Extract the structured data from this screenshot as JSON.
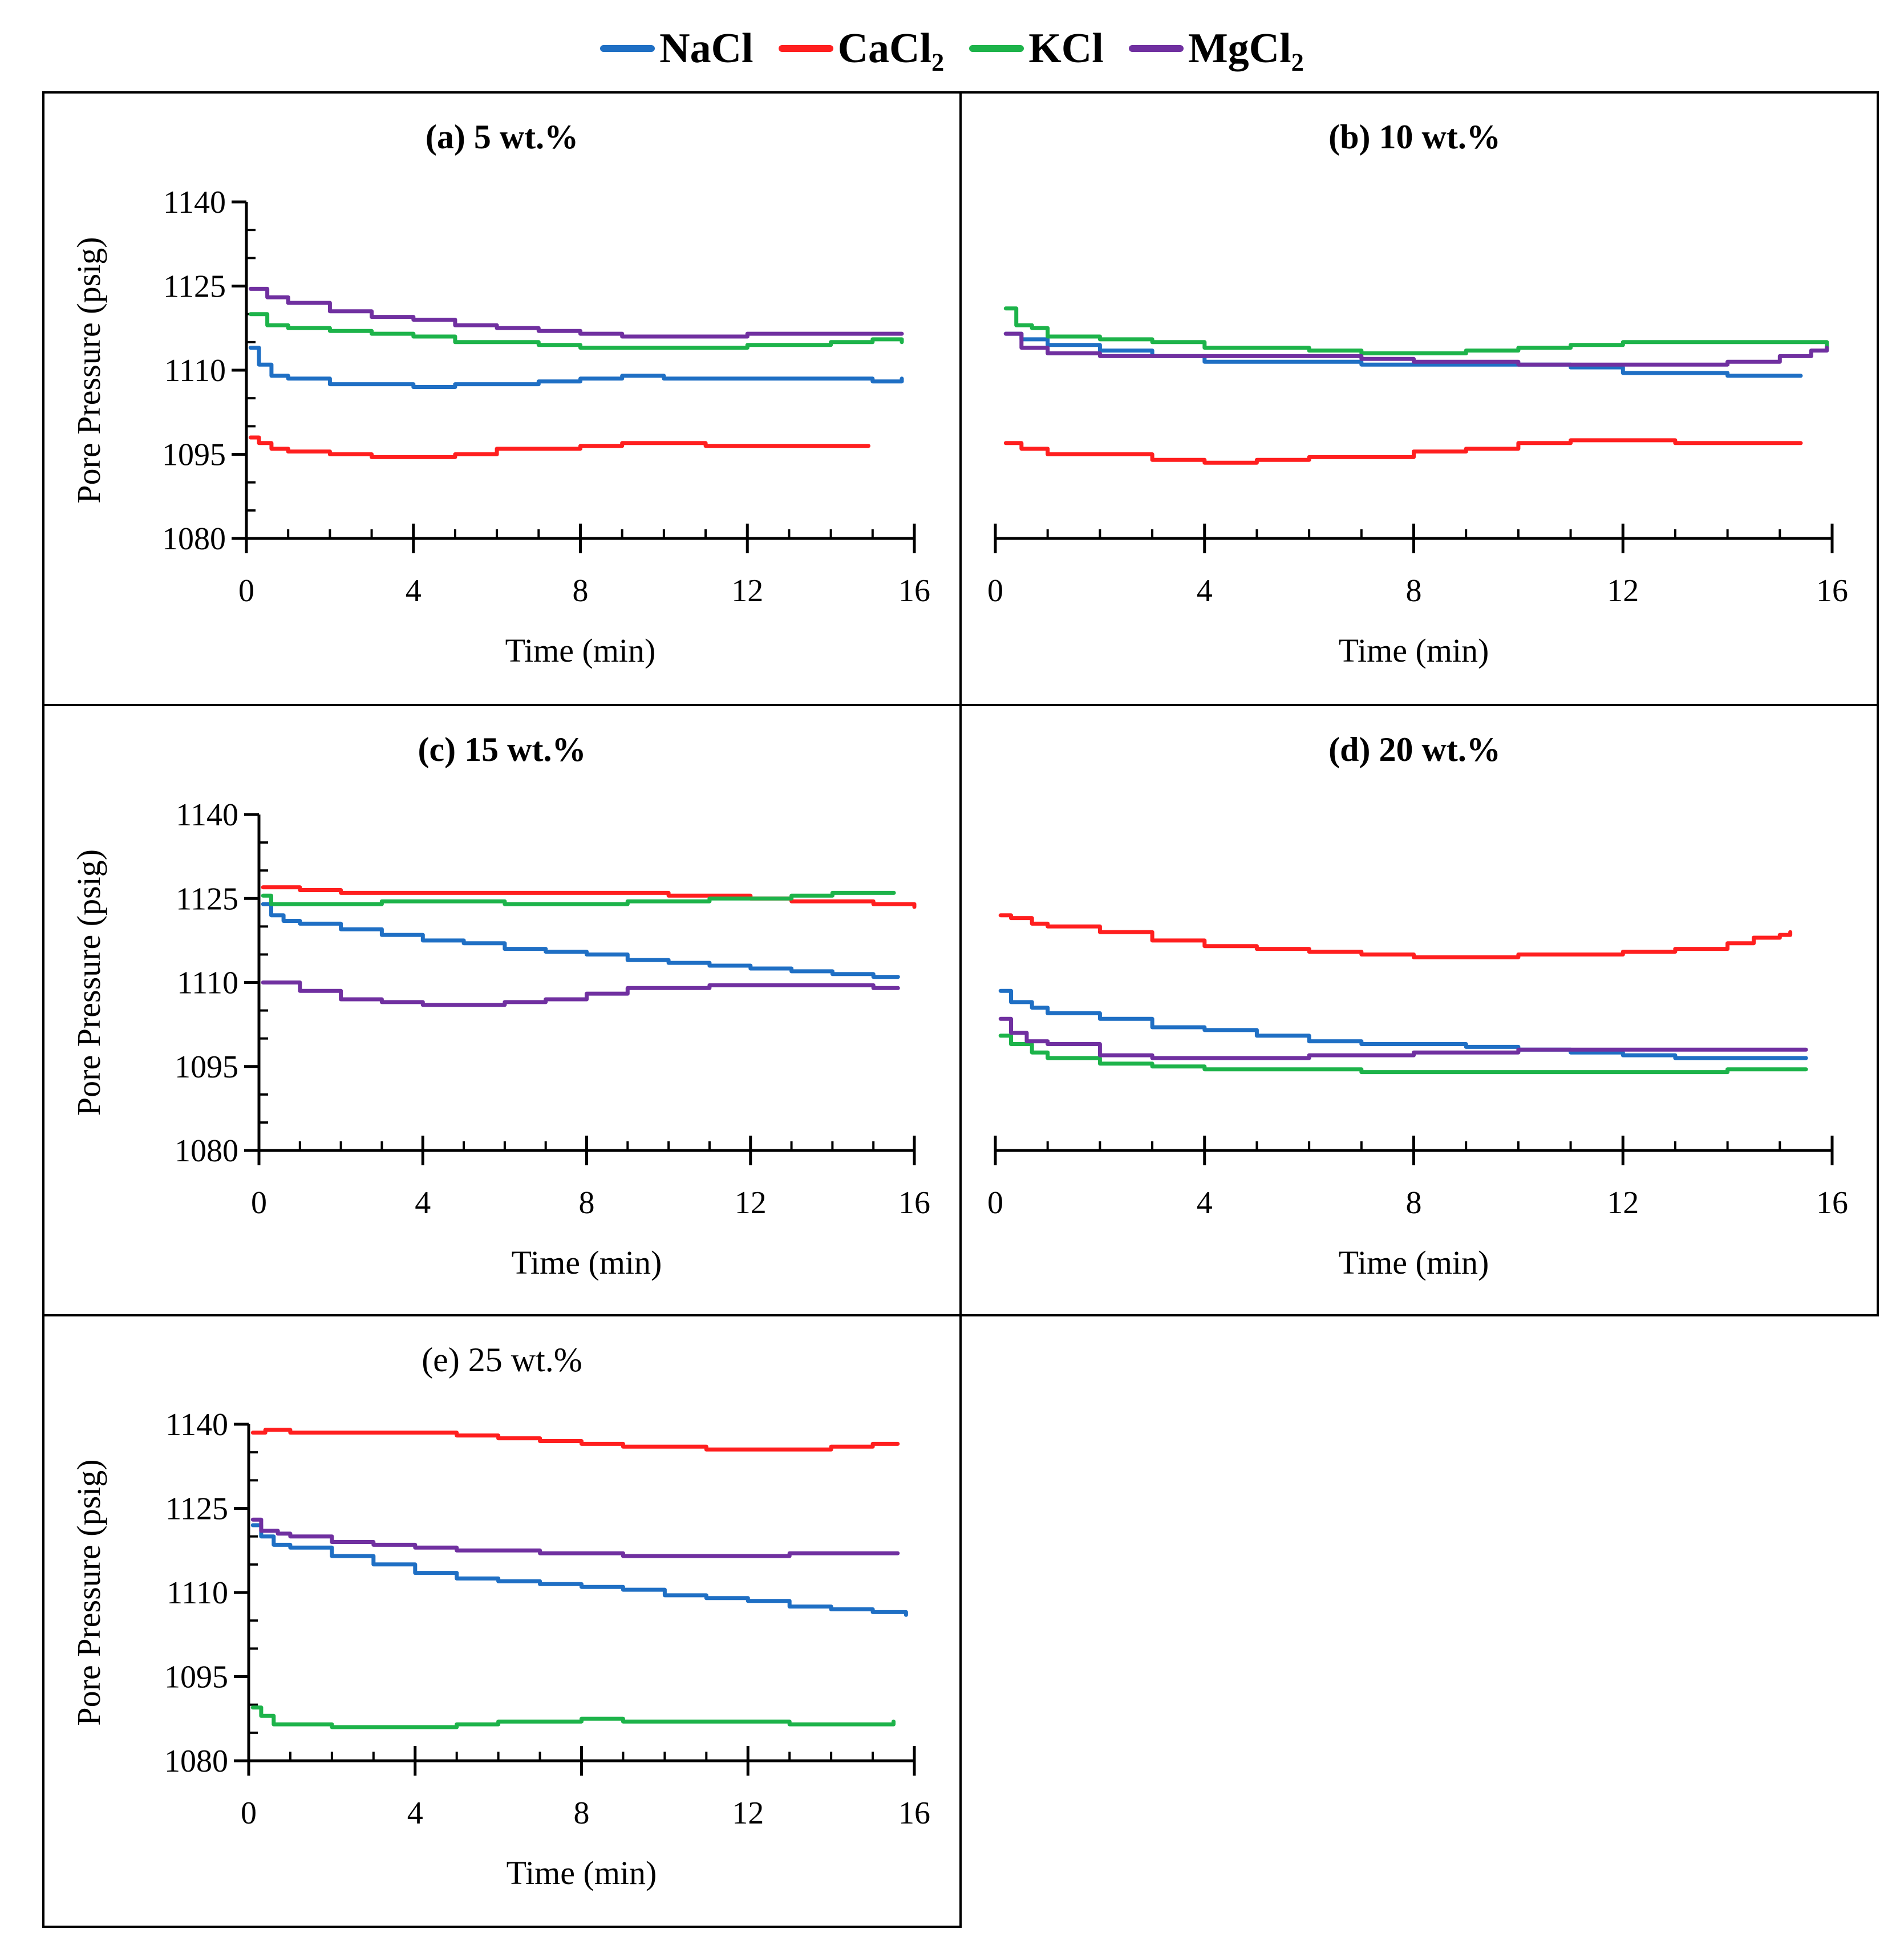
{
  "legend": {
    "items": [
      {
        "label": "NaCl",
        "color": "#1f6fc4"
      },
      {
        "label": "CaCl₂",
        "color": "#ff1f1f"
      },
      {
        "label": "KCl",
        "color": "#1db34a"
      },
      {
        "label": "MgCl₂",
        "color": "#7030a0"
      }
    ]
  },
  "chart_data": [
    {
      "type": "line",
      "title": "(a) 5 wt.%",
      "title_bold": true,
      "xlabel": "Time (min)",
      "ylabel": "Pore Pressure (psig)",
      "xlim": [
        0,
        16
      ],
      "ylim": [
        1080,
        1140
      ],
      "xticks": [
        "0",
        "4",
        "8",
        "12",
        "16"
      ],
      "yticks": [
        "1080",
        "1095",
        "1110",
        "1125",
        "1140"
      ],
      "show_y_labels": true,
      "series": [
        {
          "name": "NaCl",
          "x": [
            0.1,
            0.3,
            0.6,
            1,
            2,
            3,
            4,
            4.5,
            5,
            6,
            7,
            8,
            9,
            10,
            12,
            14,
            15,
            15.7
          ],
          "y": [
            1114,
            1111,
            1109,
            1108.5,
            1107.5,
            1107.5,
            1107,
            1107,
            1107.5,
            1107.5,
            1108,
            1108.5,
            1109,
            1108.5,
            1108.5,
            1108.5,
            1108,
            1108.5
          ]
        },
        {
          "name": "CaCl₂",
          "x": [
            0.1,
            0.3,
            0.6,
            1,
            2,
            3,
            4,
            5,
            6,
            7,
            8,
            9,
            10,
            11,
            12,
            13,
            14,
            14.9
          ],
          "y": [
            1098,
            1097,
            1096,
            1095.5,
            1095,
            1094.5,
            1094.5,
            1095,
            1096,
            1096,
            1096.5,
            1097,
            1097,
            1096.5,
            1096.5,
            1096.5,
            1096.5,
            1096.5
          ]
        },
        {
          "name": "KCl",
          "x": [
            0.1,
            0.5,
            1,
            2,
            3,
            4,
            5,
            6,
            7,
            8,
            9,
            10,
            11,
            12,
            13,
            14,
            15,
            15.7
          ],
          "y": [
            1120,
            1118,
            1117.5,
            1117,
            1116.5,
            1116,
            1115,
            1115,
            1114.5,
            1114,
            1114,
            1114,
            1114,
            1114.5,
            1114.5,
            1115,
            1115.5,
            1115
          ]
        },
        {
          "name": "MgCl₂",
          "x": [
            0.1,
            0.5,
            1,
            2,
            3,
            4,
            5,
            6,
            7,
            8,
            9,
            10,
            11,
            12,
            13,
            14,
            15,
            15.7
          ],
          "y": [
            1124.5,
            1123,
            1122,
            1120.5,
            1119.5,
            1119,
            1118,
            1117.5,
            1117,
            1116.5,
            1116,
            1116,
            1116,
            1116.5,
            1116.5,
            1116.5,
            1116.5,
            1116.5
          ]
        }
      ]
    },
    {
      "type": "line",
      "title": "(b) 10 wt.%",
      "title_bold": true,
      "xlabel": "Time (min)",
      "ylabel": "",
      "xlim": [
        0,
        16
      ],
      "ylim": [
        1080,
        1140
      ],
      "xticks": [
        "0",
        "4",
        "8",
        "12",
        "16"
      ],
      "yticks": [
        "1080",
        "1095",
        "1110",
        "1125",
        "1140"
      ],
      "show_y_labels": false,
      "series": [
        {
          "name": "NaCl",
          "x": [
            0.2,
            0.5,
            1,
            2,
            3,
            4,
            5,
            6,
            7,
            8,
            9,
            10,
            11,
            12,
            13,
            14,
            15,
            15.4
          ],
          "y": [
            1116.5,
            1115.5,
            1114.5,
            1113.5,
            1112.5,
            1111.5,
            1111.5,
            1111.5,
            1111,
            1111,
            1111,
            1111,
            1110.5,
            1109.5,
            1109.5,
            1109,
            1109,
            1109
          ]
        },
        {
          "name": "CaCl₂",
          "x": [
            0.2,
            0.5,
            1,
            2,
            3,
            4,
            5,
            6,
            7,
            8,
            9,
            10,
            11,
            12,
            13,
            14,
            15,
            15.4
          ],
          "y": [
            1097,
            1096,
            1095,
            1095,
            1094,
            1093.5,
            1094,
            1094.5,
            1094.5,
            1095.5,
            1096,
            1097,
            1097.5,
            1097.5,
            1097,
            1097,
            1097,
            1097
          ]
        },
        {
          "name": "KCl",
          "x": [
            0.2,
            0.4,
            0.7,
            1,
            2,
            3,
            4,
            5,
            6,
            7,
            8,
            9,
            10,
            11,
            12,
            13,
            14,
            15,
            15.6,
            15.9
          ],
          "y": [
            1121,
            1118,
            1117.5,
            1116,
            1115.5,
            1115,
            1114,
            1114,
            1113.5,
            1113,
            1113,
            1113.5,
            1114,
            1114.5,
            1115,
            1115,
            1115,
            1115,
            1115,
            1114
          ]
        },
        {
          "name": "MgCl₂",
          "x": [
            0.2,
            0.5,
            1,
            2,
            3,
            4,
            5,
            6,
            7,
            8,
            9,
            10,
            11,
            12,
            13,
            14,
            15,
            15.6,
            15.9
          ],
          "y": [
            1116.5,
            1114,
            1113,
            1112.5,
            1112.5,
            1112.5,
            1112.5,
            1112.5,
            1112,
            1111.5,
            1111.5,
            1111,
            1111,
            1111,
            1111,
            1111.5,
            1112.5,
            1113.5,
            1114
          ]
        }
      ]
    },
    {
      "type": "line",
      "title": "(c) 15 wt.%",
      "title_bold": true,
      "xlabel": "Time (min)",
      "ylabel": "Pore Pressure (psig)",
      "xlim": [
        0,
        16
      ],
      "ylim": [
        1080,
        1140
      ],
      "xticks": [
        "0",
        "4",
        "8",
        "12",
        "16"
      ],
      "yticks": [
        "1080",
        "1095",
        "1110",
        "1125",
        "1140"
      ],
      "show_y_labels": true,
      "series": [
        {
          "name": "NaCl",
          "x": [
            0.1,
            0.3,
            0.6,
            1,
            2,
            3,
            4,
            5,
            6,
            7,
            8,
            9,
            10,
            11,
            12,
            13,
            14,
            15,
            15.6
          ],
          "y": [
            1124,
            1122,
            1121,
            1120.5,
            1119.5,
            1118.5,
            1117.5,
            1117,
            1116,
            1115.5,
            1115,
            1114,
            1113.5,
            1113,
            1112.5,
            1112,
            1111.5,
            1111,
            1111
          ]
        },
        {
          "name": "CaCl₂",
          "x": [
            0.1,
            1,
            2,
            3,
            4,
            5,
            6,
            7,
            8,
            9,
            10,
            11,
            12,
            13,
            14,
            15,
            15.5,
            16
          ],
          "y": [
            1127,
            1126.5,
            1126,
            1126,
            1126,
            1126,
            1126,
            1126,
            1126,
            1126,
            1125.5,
            1125.5,
            1125,
            1124.5,
            1124.5,
            1124,
            1124,
            1123.5
          ]
        },
        {
          "name": "KCl",
          "x": [
            0.1,
            0.3,
            0.7,
            1,
            2,
            3,
            4,
            5,
            6,
            7,
            8,
            9,
            10,
            11,
            12,
            13,
            14,
            15,
            15.5
          ],
          "y": [
            1125.5,
            1124,
            1124,
            1124,
            1124,
            1124.5,
            1124.5,
            1124.5,
            1124,
            1124,
            1124,
            1124.5,
            1124.5,
            1125,
            1125,
            1125.5,
            1126,
            1126,
            1126
          ]
        },
        {
          "name": "MgCl₂",
          "x": [
            0.1,
            0.4,
            1,
            2,
            3,
            4,
            5,
            6,
            7,
            8,
            9,
            10,
            11,
            12,
            13,
            14,
            15,
            15.6
          ],
          "y": [
            1110,
            1110,
            1108.5,
            1107,
            1106.5,
            1106,
            1106,
            1106.5,
            1107,
            1108,
            1109,
            1109,
            1109.5,
            1109.5,
            1109.5,
            1109.5,
            1109,
            1109
          ]
        }
      ]
    },
    {
      "type": "line",
      "title": "(d) 20 wt.%",
      "title_bold": true,
      "xlabel": "Time (min)",
      "ylabel": "",
      "xlim": [
        0,
        16
      ],
      "ylim": [
        1080,
        1140
      ],
      "xticks": [
        "0",
        "4",
        "8",
        "12",
        "16"
      ],
      "yticks": [
        "1080",
        "1095",
        "1110",
        "1125",
        "1140"
      ],
      "show_y_labels": false,
      "series": [
        {
          "name": "NaCl",
          "x": [
            0.1,
            0.3,
            0.7,
            1,
            2,
            3,
            4,
            5,
            6,
            7,
            8,
            9,
            10,
            11,
            12,
            13,
            14,
            15,
            15.5
          ],
          "y": [
            1108.5,
            1106.5,
            1105.5,
            1104.5,
            1103.5,
            1102,
            1101.5,
            1100.5,
            1099.5,
            1099,
            1099,
            1098.5,
            1098,
            1097.5,
            1097,
            1096.5,
            1096.5,
            1096.5,
            1096.5
          ]
        },
        {
          "name": "CaCl₂",
          "x": [
            0.1,
            0.3,
            0.7,
            1,
            2,
            3,
            4,
            5,
            6,
            7,
            8,
            9,
            10,
            11,
            12,
            13,
            14,
            14.5,
            15,
            15.2
          ],
          "y": [
            1122,
            1121.5,
            1120.5,
            1120,
            1119,
            1117.5,
            1116.5,
            1116,
            1115.5,
            1115,
            1114.5,
            1114.5,
            1115,
            1115,
            1115.5,
            1116,
            1117,
            1118,
            1118.5,
            1119
          ]
        },
        {
          "name": "KCl",
          "x": [
            0.1,
            0.3,
            0.7,
            1,
            2,
            3,
            4,
            5,
            6,
            7,
            8,
            9,
            10,
            11,
            12,
            13,
            14,
            15,
            15.5
          ],
          "y": [
            1100.5,
            1099,
            1097.5,
            1096.5,
            1095.5,
            1095,
            1094.5,
            1094.5,
            1094.5,
            1094,
            1094,
            1094,
            1094,
            1094,
            1094,
            1094,
            1094.5,
            1094.5,
            1094.5
          ]
        },
        {
          "name": "MgCl₂",
          "x": [
            0.1,
            0.3,
            0.6,
            1,
            2,
            3,
            4,
            5,
            6,
            7,
            8,
            9,
            10,
            11,
            12,
            13,
            14,
            15,
            15.5
          ],
          "y": [
            1103.5,
            1101,
            1099.5,
            1099,
            1097,
            1096.5,
            1096.5,
            1096.5,
            1097,
            1097,
            1097.5,
            1097.5,
            1098,
            1098,
            1098,
            1098,
            1098,
            1098,
            1098
          ]
        }
      ]
    },
    {
      "type": "line",
      "title": "(e) 25 wt.%",
      "title_bold": false,
      "xlabel": "Time (min)",
      "ylabel": "Pore Pressure (psig)",
      "xlim": [
        0,
        16
      ],
      "ylim": [
        1080,
        1140
      ],
      "xticks": [
        "0",
        "4",
        "8",
        "12",
        "16"
      ],
      "yticks": [
        "1080",
        "1095",
        "1110",
        "1125",
        "1140"
      ],
      "show_y_labels": true,
      "series": [
        {
          "name": "NaCl",
          "x": [
            0.1,
            0.3,
            0.6,
            1,
            2,
            3,
            4,
            5,
            6,
            7,
            8,
            9,
            10,
            11,
            12,
            13,
            14,
            15,
            15.8
          ],
          "y": [
            1122,
            1120,
            1118.5,
            1118,
            1116.5,
            1115,
            1113.5,
            1112.5,
            1112,
            1111.5,
            1111,
            1110.5,
            1109.5,
            1109,
            1108.5,
            1107.5,
            1107,
            1106.5,
            1106
          ]
        },
        {
          "name": "CaCl₂",
          "x": [
            0.1,
            0.4,
            1,
            2,
            3,
            4,
            5,
            6,
            7,
            8,
            9,
            10,
            11,
            12,
            13,
            14,
            15,
            15.6
          ],
          "y": [
            1138.5,
            1139,
            1138.5,
            1138.5,
            1138.5,
            1138.5,
            1138,
            1137.5,
            1137,
            1136.5,
            1136,
            1136,
            1135.5,
            1135.5,
            1135.5,
            1136,
            1136.5,
            1136.5
          ]
        },
        {
          "name": "KCl",
          "x": [
            0.1,
            0.3,
            0.6,
            1,
            2,
            3,
            4,
            5,
            6,
            7,
            8,
            9,
            10,
            11,
            12,
            13,
            14,
            15,
            15.5
          ],
          "y": [
            1089.5,
            1088,
            1086.5,
            1086.5,
            1086,
            1086,
            1086,
            1086.5,
            1087,
            1087,
            1087.5,
            1087,
            1087,
            1087,
            1087,
            1086.5,
            1086.5,
            1086.5,
            1087
          ]
        },
        {
          "name": "MgCl₂",
          "x": [
            0.1,
            0.3,
            0.7,
            1,
            2,
            3,
            4,
            5,
            6,
            7,
            8,
            9,
            10,
            11,
            12,
            13,
            14,
            15,
            15.6
          ],
          "y": [
            1123,
            1121,
            1120.5,
            1120,
            1119,
            1118.5,
            1118,
            1117.5,
            1117.5,
            1117,
            1117,
            1116.5,
            1116.5,
            1116.5,
            1116.5,
            1117,
            1117,
            1117,
            1117
          ]
        }
      ]
    }
  ]
}
